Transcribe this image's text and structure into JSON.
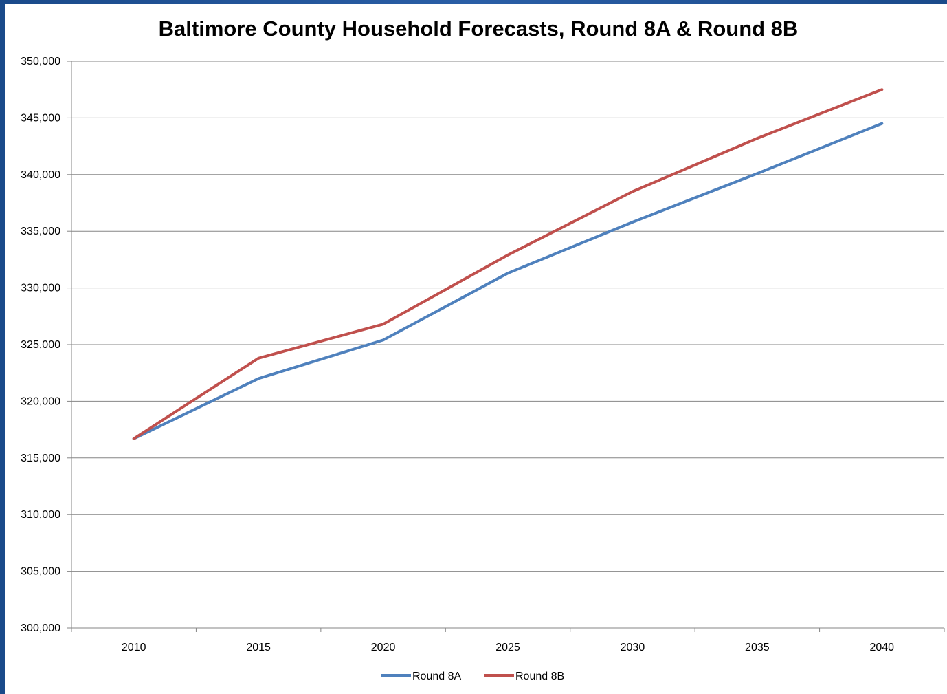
{
  "chart_data": {
    "type": "line",
    "title": "Baltimore County Household Forecasts, Round 8A & Round 8B",
    "xlabel": "",
    "ylabel": "",
    "categories": [
      "2010",
      "2015",
      "2020",
      "2025",
      "2030",
      "2035",
      "2040"
    ],
    "ylim": [
      300000,
      350000
    ],
    "yticks": [
      "300,000",
      "305,000",
      "310,000",
      "315,000",
      "320,000",
      "325,000",
      "330,000",
      "335,000",
      "340,000",
      "345,000",
      "350,000"
    ],
    "ytick_values": [
      300000,
      305000,
      310000,
      315000,
      320000,
      325000,
      330000,
      335000,
      340000,
      345000,
      350000
    ],
    "grid": true,
    "legend_position": "bottom",
    "series": [
      {
        "name": "Round 8A",
        "color": "#4f81bd",
        "values": [
          316700,
          322000,
          325400,
          331300,
          335800,
          340100,
          344500
        ]
      },
      {
        "name": "Round 8B",
        "color": "#c0504d",
        "values": [
          316700,
          323800,
          326800,
          332900,
          338500,
          343200,
          347500
        ]
      }
    ]
  }
}
